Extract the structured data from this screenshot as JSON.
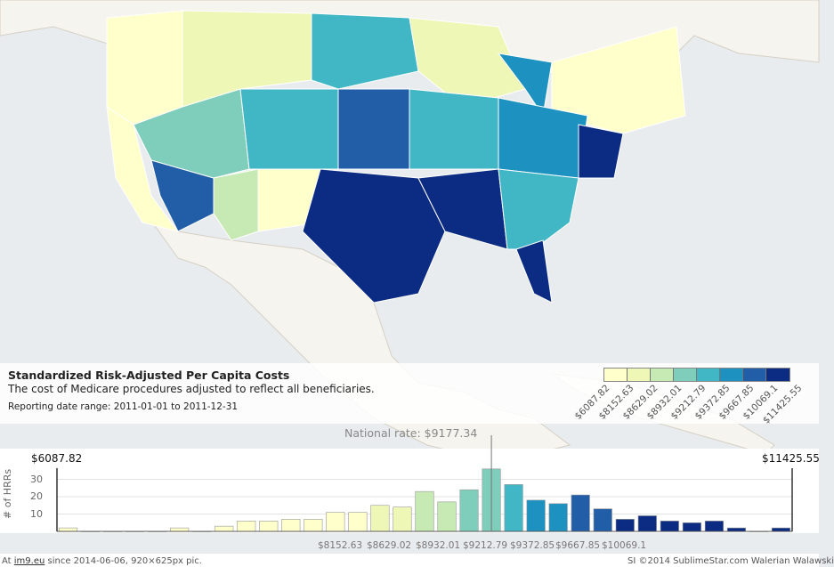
{
  "panel": {
    "title": "Standardized Risk-Adjusted Per Capita Costs",
    "subtitle": "The cost of Medicare procedures adjusted to reflect all beneficiaries.",
    "date_range": "Reporting date range: 2011-01-01 to 2011-12-31"
  },
  "legend": {
    "colors": [
      "#ffffcc",
      "#eef7b6",
      "#c7e9b4",
      "#7fcdbb",
      "#41b6c4",
      "#1d91c0",
      "#225ea8",
      "#0c2c84"
    ],
    "labels": [
      "$6087.82",
      "$8152.63",
      "$8629.02",
      "$8932.01",
      "$9212.79",
      "$9372.85",
      "$9667.85",
      "$10069.1",
      "$11425.55"
    ]
  },
  "map": {
    "ocean_color": "#e9ecef",
    "land_color": "#f6f4ee"
  },
  "chart_data": {
    "type": "bar",
    "ylabel": "# of HRRs",
    "yticks": [
      10,
      20,
      30
    ],
    "national_rate_label": "National rate: $9177.34",
    "national_rate_value": 9177.34,
    "min_label": "$6087.82",
    "max_label": "$11425.55",
    "xtick_labels": [
      "$8152.63",
      "$8629.02",
      "$8932.01",
      "$9212.79",
      "$9372.85",
      "$9667.85",
      "$10069.1"
    ],
    "values": [
      2,
      0,
      0,
      0,
      0,
      2,
      0,
      3,
      6,
      6,
      7,
      7,
      11,
      11,
      15,
      14,
      23,
      17,
      24,
      36,
      27,
      18,
      16,
      21,
      13,
      7,
      9,
      6,
      5,
      6,
      2,
      0,
      2
    ],
    "bin_colors": [
      "#ffffcc",
      "#ffffcc",
      "#ffffcc",
      "#ffffcc",
      "#ffffcc",
      "#ffffcc",
      "#ffffcc",
      "#ffffcc",
      "#ffffcc",
      "#ffffcc",
      "#ffffcc",
      "#ffffcc",
      "#ffffcc",
      "#ffffcc",
      "#eef7b6",
      "#eef7b6",
      "#c7e9b4",
      "#c7e9b4",
      "#7fcdbb",
      "#7fcdbb",
      "#41b6c4",
      "#1d91c0",
      "#1d91c0",
      "#225ea8",
      "#225ea8",
      "#0c2c84",
      "#0c2c84",
      "#0c2c84",
      "#0c2c84",
      "#0c2c84",
      "#0c2c84",
      "#0c2c84",
      "#0c2c84"
    ]
  },
  "footer": {
    "prefix": "At ",
    "site": "im9.eu",
    "suffix": " since 2014-06-06, 920×625px pic.",
    "right": "SI ©2014 SublimeStar.com Walerian Walawski"
  }
}
